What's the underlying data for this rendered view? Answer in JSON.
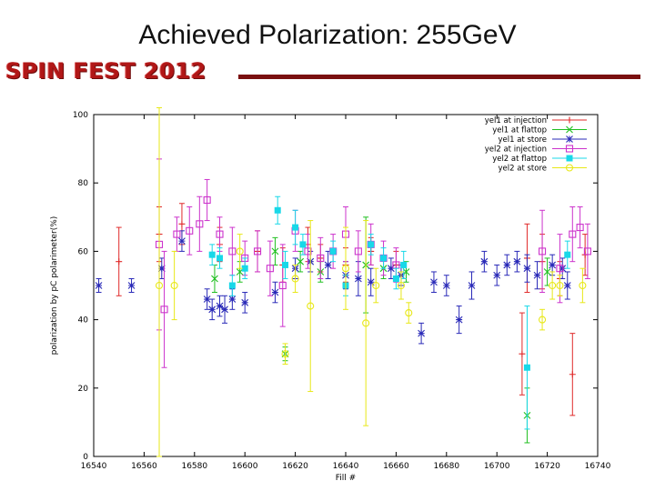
{
  "slide": {
    "title": "Achieved Polarization: 255GeV",
    "brand": "SPIN FEST 2012"
  },
  "chart_data": {
    "type": "scatter",
    "xlabel": "Fill #",
    "ylabel": "polarization by pC polarimeter(%)",
    "xlim": [
      16540,
      16740
    ],
    "ylim": [
      0,
      100
    ],
    "xticks": [
      16540,
      16560,
      16580,
      16600,
      16620,
      16640,
      16660,
      16680,
      16700,
      16720,
      16740
    ],
    "yticks": [
      0,
      20,
      40,
      60,
      80,
      100
    ],
    "grid": false,
    "legend": "top-right",
    "series": [
      {
        "name": "yel1 at injection",
        "color": "#e02a2a",
        "marker": "plus",
        "points": [
          [
            16550,
            57,
            10
          ],
          [
            16566,
            65,
            8
          ],
          [
            16575,
            68,
            6
          ],
          [
            16590,
            62,
            5
          ],
          [
            16605,
            60,
            6
          ],
          [
            16615,
            56,
            5
          ],
          [
            16625,
            62,
            5
          ],
          [
            16630,
            58,
            4
          ],
          [
            16640,
            56,
            5
          ],
          [
            16650,
            60,
            4
          ],
          [
            16660,
            56,
            4
          ],
          [
            16710,
            30,
            12
          ],
          [
            16712,
            58,
            10
          ],
          [
            16718,
            57,
            8
          ],
          [
            16725,
            52,
            5
          ],
          [
            16730,
            24,
            12
          ],
          [
            16735,
            59,
            6
          ]
        ]
      },
      {
        "name": "yel1 at flattop",
        "color": "#1fbf1f",
        "marker": "x",
        "points": [
          [
            16588,
            52,
            4
          ],
          [
            16598,
            54,
            3
          ],
          [
            16612,
            60,
            4
          ],
          [
            16616,
            30,
            2
          ],
          [
            16622,
            57,
            3
          ],
          [
            16630,
            54,
            3
          ],
          [
            16648,
            56,
            14
          ],
          [
            16655,
            55,
            3
          ],
          [
            16664,
            54,
            3
          ],
          [
            16712,
            12,
            8
          ],
          [
            16720,
            54,
            4
          ]
        ]
      },
      {
        "name": "yel1 at store",
        "color": "#2a2ab8",
        "marker": "star",
        "points": [
          [
            16542,
            50,
            2
          ],
          [
            16555,
            50,
            2
          ],
          [
            16567,
            55,
            3
          ],
          [
            16575,
            63,
            3
          ],
          [
            16585,
            46,
            3
          ],
          [
            16587,
            43,
            3
          ],
          [
            16590,
            44,
            3
          ],
          [
            16592,
            43,
            4
          ],
          [
            16595,
            46,
            3
          ],
          [
            16600,
            45,
            3
          ],
          [
            16612,
            48,
            3
          ],
          [
            16620,
            55,
            3
          ],
          [
            16626,
            57,
            3
          ],
          [
            16633,
            56,
            4
          ],
          [
            16640,
            53,
            4
          ],
          [
            16645,
            52,
            5
          ],
          [
            16650,
            51,
            4
          ],
          [
            16658,
            55,
            3
          ],
          [
            16662,
            53,
            3
          ],
          [
            16670,
            36,
            3
          ],
          [
            16675,
            51,
            3
          ],
          [
            16680,
            50,
            3
          ],
          [
            16685,
            40,
            4
          ],
          [
            16690,
            50,
            4
          ],
          [
            16695,
            57,
            3
          ],
          [
            16700,
            53,
            3
          ],
          [
            16704,
            56,
            3
          ],
          [
            16708,
            57,
            3
          ],
          [
            16712,
            55,
            4
          ],
          [
            16716,
            53,
            4
          ],
          [
            16722,
            56,
            3
          ],
          [
            16726,
            55,
            3
          ],
          [
            16728,
            50,
            4
          ]
        ]
      },
      {
        "name": "yel2 at injection",
        "color": "#cc33cc",
        "marker": "square",
        "points": [
          [
            16566,
            62,
            25
          ],
          [
            16568,
            43,
            17
          ],
          [
            16573,
            65,
            5
          ],
          [
            16578,
            66,
            7
          ],
          [
            16582,
            68,
            8
          ],
          [
            16585,
            75,
            6
          ],
          [
            16590,
            65,
            5
          ],
          [
            16595,
            60,
            7
          ],
          [
            16600,
            58,
            5
          ],
          [
            16605,
            60,
            6
          ],
          [
            16610,
            55,
            8
          ],
          [
            16615,
            50,
            12
          ],
          [
            16620,
            66,
            6
          ],
          [
            16625,
            60,
            5
          ],
          [
            16630,
            58,
            6
          ],
          [
            16635,
            60,
            5
          ],
          [
            16640,
            65,
            8
          ],
          [
            16645,
            60,
            6
          ],
          [
            16650,
            62,
            6
          ],
          [
            16655,
            58,
            5
          ],
          [
            16660,
            56,
            5
          ],
          [
            16718,
            60,
            12
          ],
          [
            16725,
            55,
            10
          ],
          [
            16730,
            65,
            8
          ],
          [
            16733,
            67,
            6
          ],
          [
            16736,
            60,
            8
          ]
        ]
      },
      {
        "name": "yel2 at flattop",
        "color": "#18d8e8",
        "marker": "filled-square",
        "points": [
          [
            16587,
            59,
            3
          ],
          [
            16590,
            58,
            3
          ],
          [
            16595,
            50,
            3
          ],
          [
            16600,
            55,
            3
          ],
          [
            16613,
            72,
            4
          ],
          [
            16616,
            56,
            4
          ],
          [
            16620,
            67,
            5
          ],
          [
            16623,
            62,
            3
          ],
          [
            16635,
            60,
            3
          ],
          [
            16640,
            50,
            3
          ],
          [
            16650,
            62,
            3
          ],
          [
            16655,
            58,
            3
          ],
          [
            16660,
            52,
            3
          ],
          [
            16663,
            56,
            4
          ],
          [
            16712,
            26,
            18
          ],
          [
            16728,
            59,
            4
          ]
        ]
      },
      {
        "name": "yel2 at store",
        "color": "#e8e818",
        "marker": "circle",
        "points": [
          [
            16566,
            50,
            52
          ],
          [
            16572,
            50,
            10
          ],
          [
            16598,
            60,
            5
          ],
          [
            16616,
            30,
            3
          ],
          [
            16620,
            52,
            4
          ],
          [
            16626,
            44,
            25
          ],
          [
            16640,
            55,
            12
          ],
          [
            16648,
            39,
            30
          ],
          [
            16652,
            50,
            5
          ],
          [
            16662,
            50,
            4
          ],
          [
            16665,
            42,
            3
          ],
          [
            16718,
            40,
            3
          ],
          [
            16722,
            50,
            4
          ],
          [
            16725,
            50,
            3
          ],
          [
            16734,
            50,
            5
          ]
        ]
      }
    ]
  }
}
